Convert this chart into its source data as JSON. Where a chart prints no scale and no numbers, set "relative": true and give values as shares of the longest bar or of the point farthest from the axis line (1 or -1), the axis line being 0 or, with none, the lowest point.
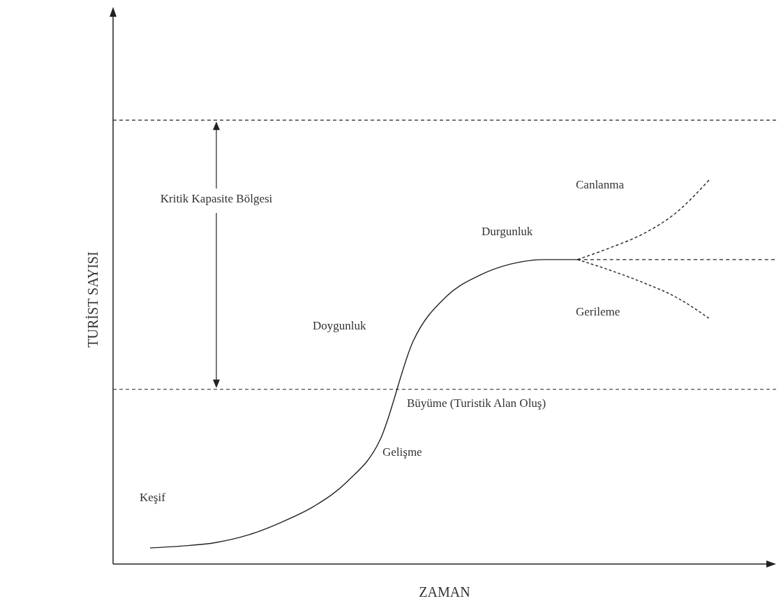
{
  "chart_data": {
    "type": "line",
    "relative": true,
    "xlabel": "ZAMAN",
    "ylabel": "TURİST SAYISI",
    "categories": [
      null,
      null,
      null,
      null,
      null,
      null,
      null,
      null,
      null,
      null,
      null,
      null,
      null,
      null,
      null,
      null,
      null,
      null,
      null,
      null
    ],
    "series": [
      {
        "color": "#222222",
        "line_style": "solid",
        "values": [
          0.042,
          0.047,
          0.056,
          0.076,
          0.109,
          0.151,
          0.215,
          0.324,
          0.58,
          0.696,
          0.751,
          0.782,
          0.793,
          0.793,
          null,
          null,
          null,
          null,
          null,
          null
        ]
      },
      {
        "color": "#222222",
        "line_style": "dashed",
        "values": [
          null,
          null,
          null,
          null,
          null,
          null,
          null,
          null,
          null,
          null,
          null,
          null,
          null,
          0.793,
          0.824,
          0.86,
          0.915,
          1,
          null,
          null
        ]
      },
      {
        "color": "#222222",
        "line_style": "dashed",
        "values": [
          null,
          null,
          null,
          null,
          null,
          null,
          null,
          null,
          null,
          null,
          null,
          null,
          null,
          0.793,
          0.793,
          0.793,
          0.793,
          0.793,
          0.793,
          0.793
        ]
      },
      {
        "color": "#222222",
        "line_style": "dashed",
        "values": [
          null,
          null,
          null,
          null,
          null,
          null,
          null,
          null,
          null,
          null,
          null,
          null,
          null,
          0.793,
          0.765,
          0.733,
          0.695,
          0.64,
          null,
          null
        ]
      }
    ],
    "ref_lines": [
      {
        "axis": "y",
        "value": 1.156,
        "line_style": "dashed",
        "color": "#222222"
      },
      {
        "axis": "y",
        "value": 0.455,
        "line_style": "dashed",
        "color": "#222222"
      }
    ],
    "annotations": [
      "Keşif",
      "Gelişme",
      "Büyüme (Turistik Alan Oluş)",
      "Doygunluk",
      "Durgunluk",
      "Canlanma",
      "Gerileme",
      "Kritik Kapasite Bölgesi"
    ]
  }
}
